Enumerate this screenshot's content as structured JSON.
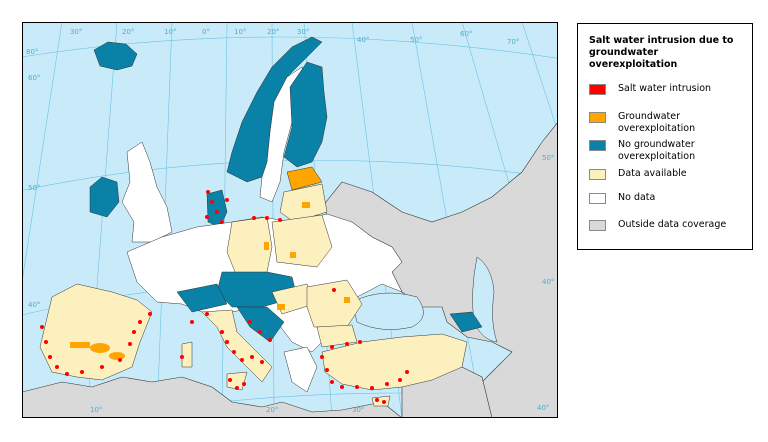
{
  "legend": {
    "title": "Salt water intrusion due to groundwater overexploitation",
    "items": [
      {
        "label": "Salt water intrusion",
        "color": "#ff0000"
      },
      {
        "label": "Groundwater overexploitation",
        "color": "#ffa500"
      },
      {
        "label": "No groundwater overexploitation",
        "color": "#0a81a6"
      },
      {
        "label": "Data available",
        "color": "#fdf0bf"
      },
      {
        "label": "No data",
        "color": "#ffffff"
      },
      {
        "label": "Outside data coverage",
        "color": "#d9d9d9"
      }
    ]
  },
  "graticule": {
    "meridians": [
      "30°",
      "20°",
      "10°",
      "0°",
      "10°",
      "20°",
      "30°",
      "40°",
      "50°",
      "60°",
      "70°",
      "80°",
      "10°",
      "20°",
      "30°",
      "40°"
    ],
    "parallels": [
      "60°",
      "50°",
      "40°",
      "50°",
      "40°"
    ]
  },
  "colors": {
    "sea": "#c9ebf9",
    "outside": "#d9d9d9",
    "graticule": "#5bbde0",
    "border": "#333333"
  }
}
